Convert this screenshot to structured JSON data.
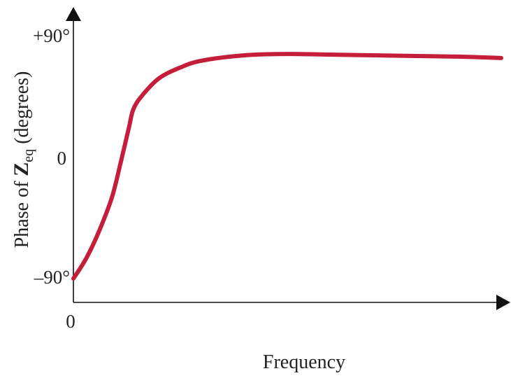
{
  "chart_data": {
    "type": "line",
    "title": "",
    "xlabel": "Frequency",
    "ylabel": {
      "prefix": "Phase of ",
      "symbol": "Z",
      "subscript": "eq",
      "suffix": " (degrees)"
    },
    "x_tick_labels": [
      "0"
    ],
    "y_ticks": [
      {
        "value": 90,
        "label": "+90°"
      },
      {
        "value": 0,
        "label": "0"
      },
      {
        "value": -90,
        "label": "–90°"
      }
    ],
    "xlim": [
      0,
      10
    ],
    "ylim": [
      -90,
      90
    ],
    "grid": false,
    "legend": "none",
    "series": [
      {
        "color": "#c41e3a",
        "x": [
          0,
          0.3,
          0.6,
          0.9,
          1.1,
          1.3,
          1.4,
          1.6,
          2.0,
          2.5,
          3.0,
          4.0,
          5.0,
          6.0,
          7.0,
          8.0,
          9.0,
          10.0
        ],
        "y": [
          -90,
          -75,
          -55,
          -30,
          -5,
          22,
          35,
          45,
          58,
          66,
          71,
          75,
          76,
          75.5,
          75,
          74.5,
          74,
          73
        ]
      }
    ]
  }
}
